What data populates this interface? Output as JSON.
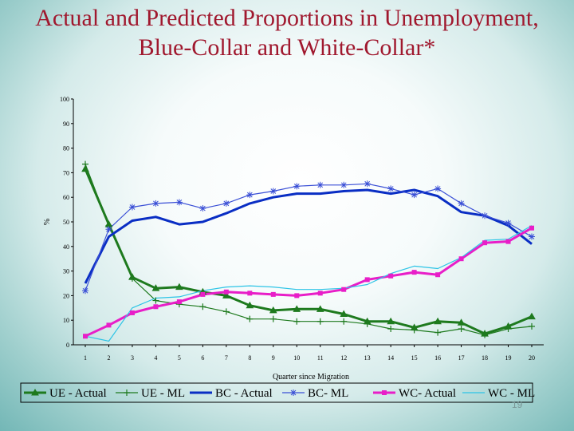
{
  "slide": {
    "title": "Actual and Predicted Proportions in Unemployment, Blue-Collar and White-Collar*",
    "page_number": "19"
  },
  "chart_data": {
    "type": "line",
    "title": "Actual and Predicted Proportions in Unemployment, Blue-Collar and White-Collar*",
    "xlabel": "Quarter since Migration",
    "ylabel": "%",
    "x": [
      1,
      2,
      3,
      4,
      5,
      6,
      7,
      8,
      9,
      10,
      11,
      12,
      13,
      14,
      15,
      16,
      17,
      18,
      19,
      20
    ],
    "ylim": [
      0,
      100
    ],
    "yticks": [
      0,
      10,
      20,
      30,
      40,
      50,
      60,
      70,
      80,
      90,
      100
    ],
    "grid": false,
    "legend_position": "bottom",
    "series": [
      {
        "name": "UE - Actual",
        "color": "#1e7a1e",
        "marker": "triangle",
        "style": "thick",
        "values": [
          71.5,
          49,
          27.5,
          23,
          23.5,
          21.5,
          20,
          16,
          14,
          14.5,
          14.5,
          12.5,
          9.5,
          9.5,
          7,
          9.5,
          9,
          4.5,
          7.5,
          11.5
        ]
      },
      {
        "name": "UE - ML",
        "color": "#1e7a1e",
        "marker": "plus",
        "style": "thin",
        "values": [
          73.5,
          48.5,
          27,
          18,
          16.5,
          15.5,
          13.5,
          10.5,
          10.5,
          9.5,
          9.5,
          9.5,
          8.5,
          6.5,
          6,
          5,
          6.5,
          4,
          6.5,
          7.5
        ]
      },
      {
        "name": "BC - Actual",
        "color": "#0a2ec4",
        "marker": "none",
        "style": "thick",
        "values": [
          25,
          44,
          50.5,
          52,
          49,
          50,
          53.5,
          57.5,
          60,
          61.5,
          61.5,
          62.5,
          63,
          61.5,
          63,
          60.5,
          54,
          52.5,
          48.5,
          41
        ]
      },
      {
        "name": "BC- ML",
        "color": "#3a4fd6",
        "marker": "star",
        "style": "thin",
        "values": [
          22,
          47,
          56,
          57.5,
          58,
          55.5,
          57.5,
          61,
          62.5,
          64.5,
          65,
          65,
          65.5,
          63.5,
          61,
          63.5,
          57.5,
          52.5,
          49.5,
          44
        ]
      },
      {
        "name": "WC- Actual",
        "color": "#e81ec8",
        "marker": "square",
        "style": "thick",
        "values": [
          3.5,
          8,
          13,
          15.5,
          17.5,
          20.5,
          21.5,
          21,
          20.5,
          20,
          21,
          22.5,
          26.5,
          28,
          29.5,
          28.5,
          35,
          41.5,
          42,
          47.5
        ]
      },
      {
        "name": "WC - ML",
        "color": "#2cc4e6",
        "marker": "none",
        "style": "thin",
        "values": [
          3.5,
          1.5,
          15,
          19,
          19.5,
          22,
          23.5,
          24,
          23.5,
          22.5,
          22.5,
          23,
          24.5,
          29,
          32,
          31,
          35.5,
          42.5,
          43,
          48.5
        ]
      }
    ]
  }
}
